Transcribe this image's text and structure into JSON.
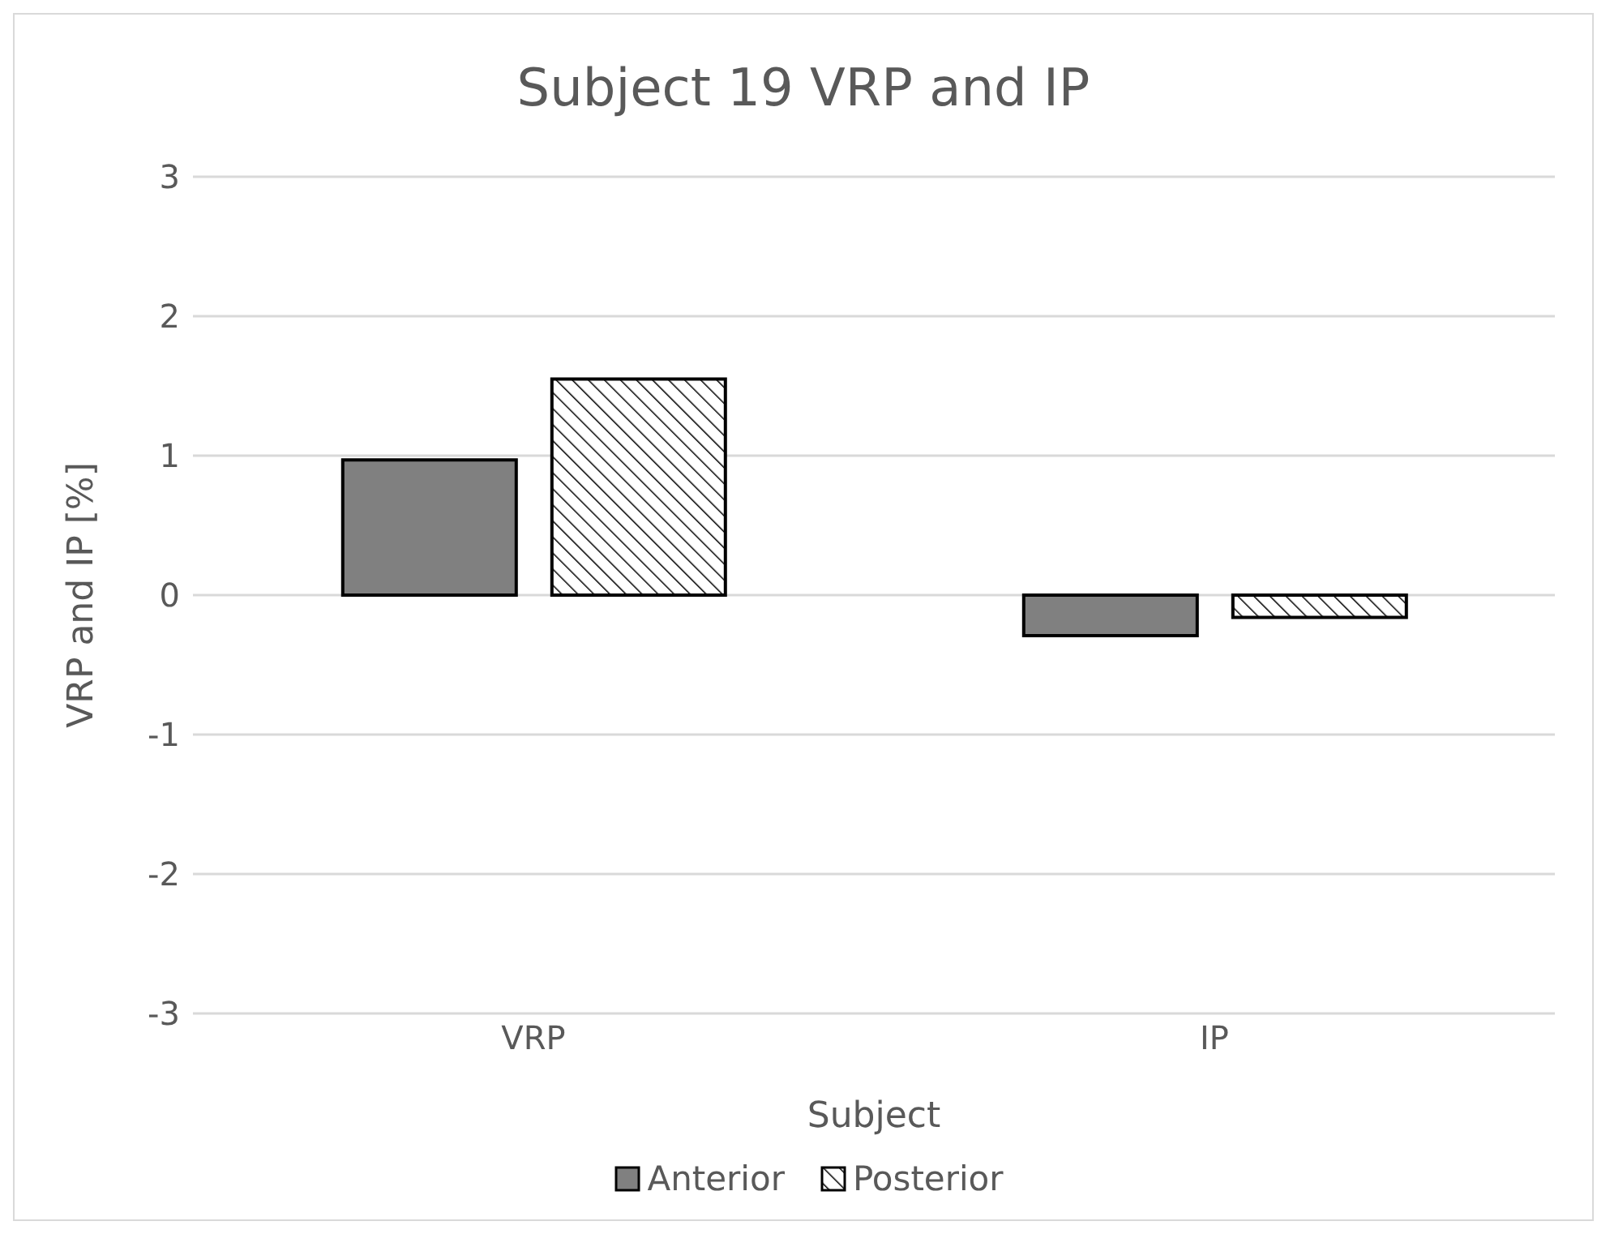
{
  "chart_data": {
    "type": "bar",
    "title": "Subject 19 VRP and IP",
    "xlabel": "Subject",
    "ylabel": "VRP and IP [%]",
    "categories": [
      "VRP",
      "IP"
    ],
    "series": [
      {
        "name": "Anterior",
        "color": "#808080",
        "values": [
          0.97,
          -0.29
        ]
      },
      {
        "name": "Posterior",
        "color": "#000000",
        "values": [
          1.55,
          -0.16
        ]
      }
    ],
    "ylim": [
      -3,
      3
    ],
    "yticks": [
      -3,
      -2,
      -1,
      0,
      1,
      2,
      3
    ],
    "grid": "y",
    "legend": "bottom"
  }
}
